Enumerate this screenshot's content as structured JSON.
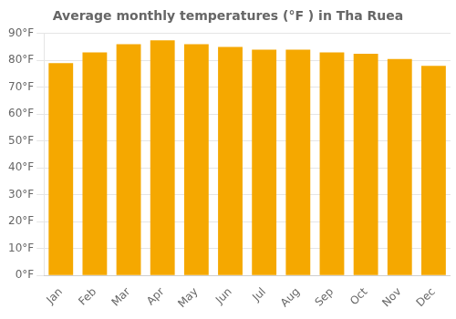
{
  "chart_data": {
    "type": "bar",
    "title": "Average monthly temperatures (°F ) in Tha Ruea",
    "categories": [
      "Jan",
      "Feb",
      "Mar",
      "Apr",
      "May",
      "Jun",
      "Jul",
      "Aug",
      "Sep",
      "Oct",
      "Nov",
      "Dec"
    ],
    "values": [
      79,
      83,
      86,
      87.5,
      86,
      85,
      84,
      84,
      83,
      82.5,
      80.5,
      78
    ],
    "color": "#F5A800",
    "ylim": [
      0,
      90
    ],
    "yticks": [
      {
        "value": 0,
        "label": "0°F"
      },
      {
        "value": 10,
        "label": "10°F"
      },
      {
        "value": 20,
        "label": "20°F"
      },
      {
        "value": 30,
        "label": "30°F"
      },
      {
        "value": 40,
        "label": "40°F"
      },
      {
        "value": 50,
        "label": "50°F"
      },
      {
        "value": 60,
        "label": "60°F"
      },
      {
        "value": 70,
        "label": "70°F"
      },
      {
        "value": 80,
        "label": "80°F"
      },
      {
        "value": 90,
        "label": "90°F"
      }
    ],
    "grid": true
  }
}
